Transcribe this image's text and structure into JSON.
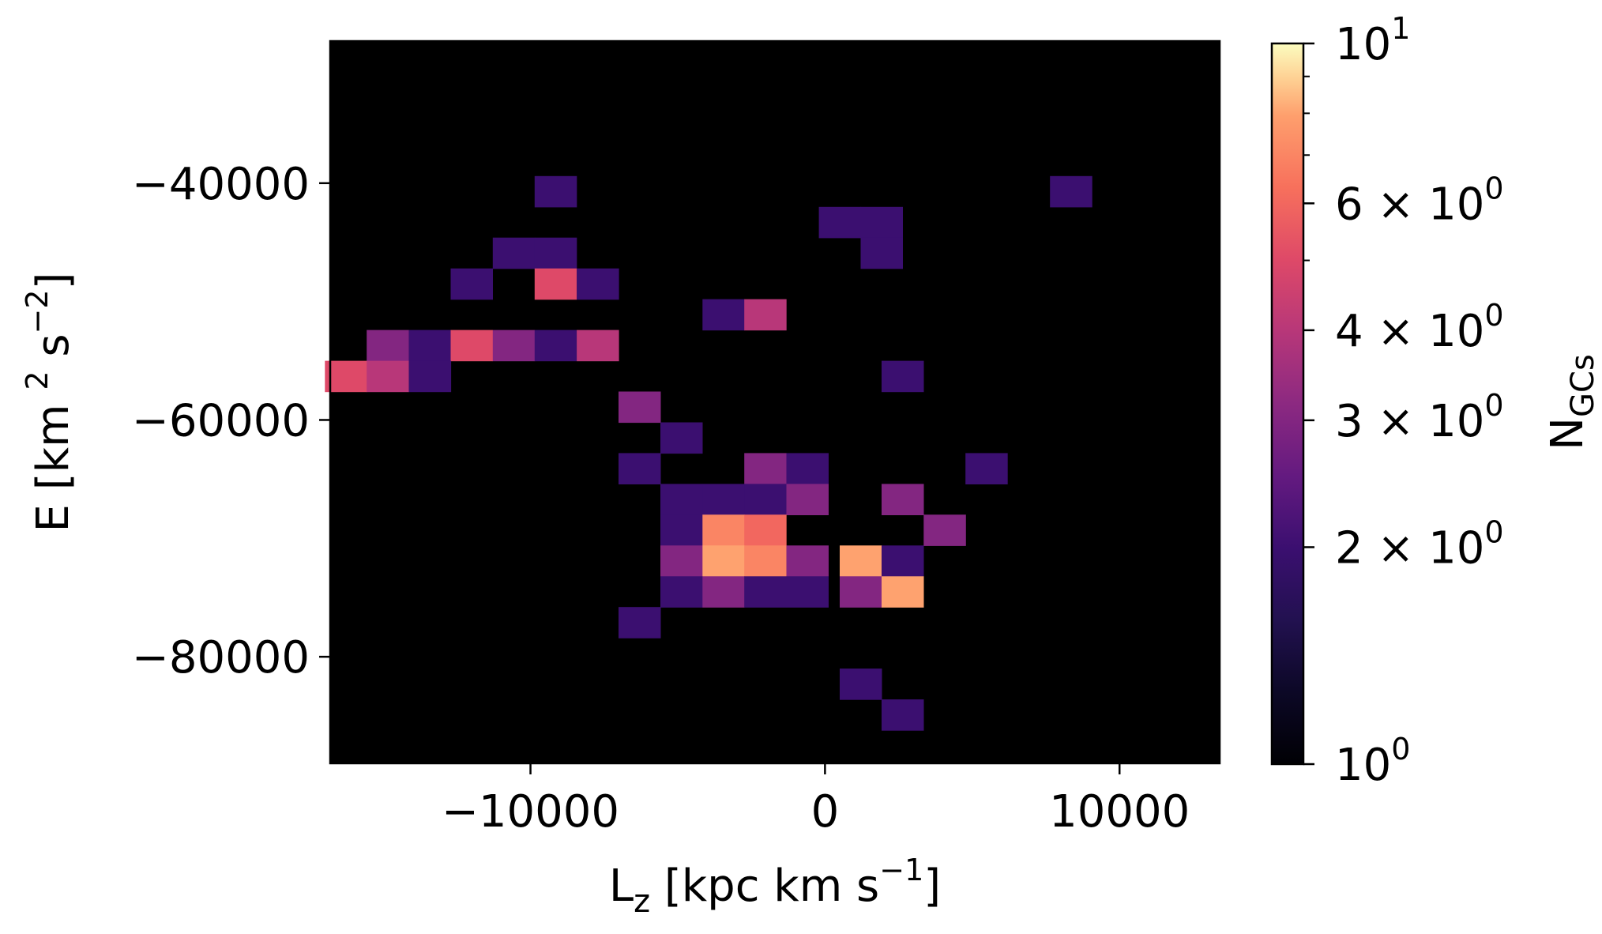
{
  "chart_data": {
    "type": "heatmap",
    "title": "",
    "xlabel": {
      "main": "L",
      "sub": "z",
      "rest": " [kpc km s",
      "sup": "−1",
      "end": "]"
    },
    "ylabel": {
      "main": "E [km ",
      "sup1": "2",
      "mid": " s",
      "sup2": "−2",
      "end": "]"
    },
    "xlim": [
      -16800,
      13400
    ],
    "ylim": [
      -89000,
      -28000
    ],
    "xticks": [
      {
        "value": -10000,
        "label": "−10000"
      },
      {
        "value": 0,
        "label": "0"
      },
      {
        "value": 10000,
        "label": "10000"
      }
    ],
    "yticks": [
      {
        "value": -40000,
        "label": "−40000"
      },
      {
        "value": -60000,
        "label": "−60000"
      },
      {
        "value": -80000,
        "label": "−80000"
      }
    ],
    "background_color": "#000000",
    "colormap": "magma",
    "cell_size": {
      "dLz": 1420,
      "dE": 2600
    },
    "cells": [
      {
        "lz": -9150,
        "e": -40700,
        "n": 2
      },
      {
        "lz": 8350,
        "e": -40700,
        "n": 2
      },
      {
        "lz": 500,
        "e": -43300,
        "n": 2
      },
      {
        "lz": 1920,
        "e": -43300,
        "n": 2
      },
      {
        "lz": -10570,
        "e": -45900,
        "n": 2
      },
      {
        "lz": -9150,
        "e": -45900,
        "n": 2
      },
      {
        "lz": 1920,
        "e": -45900,
        "n": 2
      },
      {
        "lz": -12000,
        "e": -48500,
        "n": 2
      },
      {
        "lz": -9150,
        "e": -48500,
        "n": 5
      },
      {
        "lz": -7720,
        "e": -48500,
        "n": 2
      },
      {
        "lz": -3450,
        "e": -51100,
        "n": 2
      },
      {
        "lz": -2030,
        "e": -51100,
        "n": 4
      },
      {
        "lz": -14850,
        "e": -53700,
        "n": 3
      },
      {
        "lz": -13420,
        "e": -53700,
        "n": 2
      },
      {
        "lz": -12000,
        "e": -53700,
        "n": 5
      },
      {
        "lz": -10570,
        "e": -53700,
        "n": 3
      },
      {
        "lz": -9150,
        "e": -53700,
        "n": 2
      },
      {
        "lz": -7720,
        "e": -53700,
        "n": 4
      },
      {
        "lz": -16270,
        "e": -56300,
        "n": 5
      },
      {
        "lz": -14850,
        "e": -56300,
        "n": 4
      },
      {
        "lz": -13420,
        "e": -56300,
        "n": 2
      },
      {
        "lz": -6300,
        "e": -58900,
        "n": 3
      },
      {
        "lz": 2630,
        "e": -56300,
        "n": 2
      },
      {
        "lz": -4880,
        "e": -61500,
        "n": 2
      },
      {
        "lz": -6300,
        "e": -64100,
        "n": 2
      },
      {
        "lz": -2030,
        "e": -64100,
        "n": 3
      },
      {
        "lz": -600,
        "e": -64100,
        "n": 2
      },
      {
        "lz": 5480,
        "e": -64100,
        "n": 2
      },
      {
        "lz": -4880,
        "e": -66700,
        "n": 2
      },
      {
        "lz": -3450,
        "e": -66700,
        "n": 2
      },
      {
        "lz": -2030,
        "e": -66700,
        "n": 2
      },
      {
        "lz": -600,
        "e": -66700,
        "n": 3
      },
      {
        "lz": 2630,
        "e": -66700,
        "n": 3
      },
      {
        "lz": -4880,
        "e": -69300,
        "n": 2
      },
      {
        "lz": -3450,
        "e": -69300,
        "n": 7
      },
      {
        "lz": -2030,
        "e": -69300,
        "n": 6
      },
      {
        "lz": 4060,
        "e": -69300,
        "n": 3
      },
      {
        "lz": -4880,
        "e": -71900,
        "n": 3
      },
      {
        "lz": -3450,
        "e": -71900,
        "n": 8
      },
      {
        "lz": -2030,
        "e": -71900,
        "n": 7
      },
      {
        "lz": -600,
        "e": -71900,
        "n": 3
      },
      {
        "lz": 1210,
        "e": -71900,
        "n": 8
      },
      {
        "lz": 2630,
        "e": -71900,
        "n": 2
      },
      {
        "lz": -4880,
        "e": -74500,
        "n": 2
      },
      {
        "lz": -3450,
        "e": -74500,
        "n": 3
      },
      {
        "lz": -2030,
        "e": -74500,
        "n": 2
      },
      {
        "lz": -600,
        "e": -74500,
        "n": 2
      },
      {
        "lz": 1210,
        "e": -74500,
        "n": 3
      },
      {
        "lz": 2630,
        "e": -74500,
        "n": 8
      },
      {
        "lz": -6300,
        "e": -77100,
        "n": 2
      },
      {
        "lz": 1210,
        "e": -82300,
        "n": 2
      },
      {
        "lz": 2630,
        "e": -84900,
        "n": 2
      }
    ],
    "colorbar": {
      "label_main": "N",
      "label_sub": "GCs",
      "scale": "log",
      "range": [
        1,
        10
      ],
      "ticks": [
        {
          "value": 10,
          "base": "10",
          "exp": "1"
        },
        {
          "value": 6,
          "base": "6 × 10",
          "exp": "0"
        },
        {
          "value": 4,
          "base": "4 × 10",
          "exp": "0"
        },
        {
          "value": 3,
          "base": "3 × 10",
          "exp": "0"
        },
        {
          "value": 2,
          "base": "2 × 10",
          "exp": "0"
        },
        {
          "value": 1,
          "base": "10",
          "exp": "0"
        }
      ],
      "minor_ticks": [
        5,
        7,
        8,
        9
      ]
    }
  }
}
